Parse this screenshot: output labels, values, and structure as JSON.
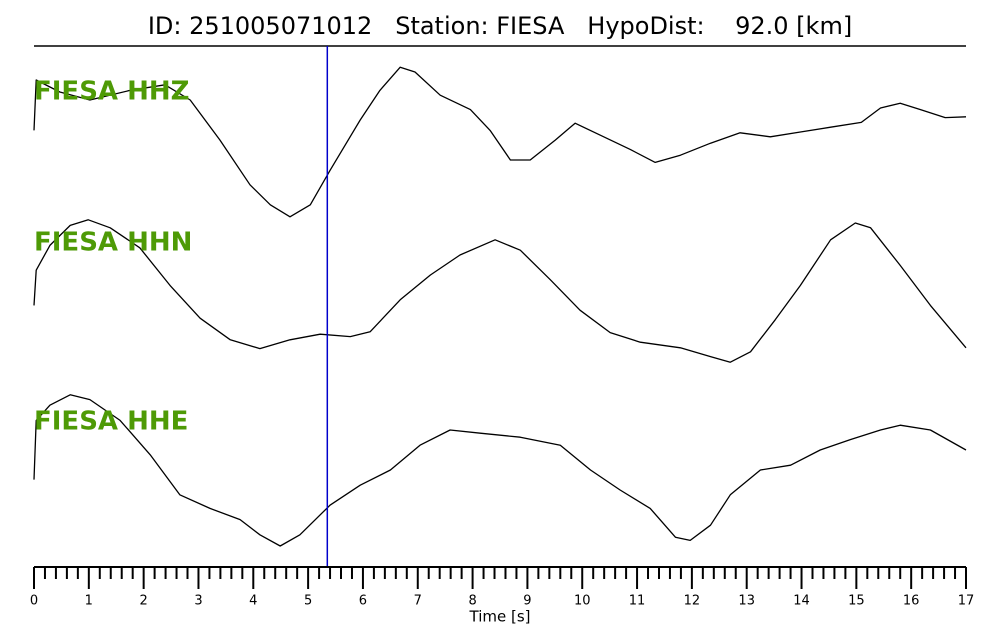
{
  "chart_data": {
    "type": "line",
    "title": "ID: 251005071012   Station: FIESA   HypoDist:    92.0 [km]",
    "xlabel": "Time [s]",
    "xlim": [
      0,
      17
    ],
    "ylim": [
      -1,
      1
    ],
    "xticks": [
      0,
      1,
      2,
      3,
      4,
      5,
      6,
      7,
      8,
      9,
      10,
      11,
      12,
      13,
      14,
      15,
      16,
      17
    ],
    "xminorticks": [
      0.2,
      0.4,
      0.6,
      0.8,
      1.2,
      1.4,
      1.6,
      1.8,
      2.2,
      2.4,
      2.6,
      2.8,
      3.2,
      3.4,
      3.6,
      3.8,
      4.2,
      4.4,
      4.6,
      4.8,
      5.2,
      5.4,
      5.6,
      5.8,
      6.2,
      6.4,
      6.6,
      6.8,
      7.2,
      7.4,
      7.6,
      7.8,
      8.2,
      8.4,
      8.6,
      8.8,
      9.2,
      9.4,
      9.6,
      9.8,
      10.2,
      10.4,
      10.6,
      10.8,
      11.2,
      11.4,
      11.6,
      11.8,
      12.2,
      12.4,
      12.6,
      12.8,
      13.2,
      13.4,
      13.6,
      13.8,
      14.2,
      14.4,
      14.6,
      14.8,
      15.2,
      15.4,
      15.6,
      15.8,
      16.2,
      16.4,
      16.6,
      16.8
    ],
    "pick_time": 5.35,
    "pick_color": "#0000cc",
    "series": [
      {
        "name": "FIESA HHZ",
        "color": "#000000",
        "x": [
          0,
          0.04,
          0.47,
          1.02,
          1.75,
          2.39,
          2.85,
          3.39,
          3.94,
          4.31,
          4.67,
          5.04,
          5.4,
          5.95,
          6.31,
          6.68,
          6.95,
          7.41,
          7.96,
          8.32,
          8.69,
          9.05,
          9.51,
          9.87,
          10.33,
          10.88,
          11.33,
          11.79,
          12.34,
          12.88,
          13.43,
          13.98,
          14.53,
          15.09,
          15.44,
          15.8,
          16.17,
          16.62,
          17
        ],
        "values": [
          0.12,
          0.75,
          0.6,
          0.5,
          0.62,
          0.69,
          0.5,
          0,
          -0.56,
          -0.81,
          -0.96,
          -0.81,
          -0.38,
          0.25,
          0.62,
          0.91,
          0.85,
          0.56,
          0.38,
          0.12,
          -0.25,
          -0.25,
          0,
          0.21,
          0.06,
          -0.12,
          -0.28,
          -0.19,
          -0.04,
          0.09,
          0.04,
          0.1,
          0.16,
          0.22,
          0.4,
          0.46,
          0.38,
          0.28,
          0.29
        ]
      },
      {
        "name": "FIESA HHN",
        "color": "#000000",
        "x": [
          0,
          0.04,
          0.29,
          0.66,
          0.99,
          1.39,
          1.93,
          2.48,
          3.03,
          3.58,
          4.12,
          4.67,
          5.22,
          5.77,
          6.13,
          6.68,
          7.23,
          7.77,
          8.41,
          8.87,
          9.42,
          9.96,
          10.51,
          11.06,
          11.79,
          12.34,
          12.7,
          13.07,
          13.52,
          13.98,
          14.53,
          14.98,
          15.26,
          15.8,
          16.35,
          17
        ],
        "values": [
          -0.18,
          0.26,
          0.57,
          0.82,
          0.89,
          0.79,
          0.54,
          0.07,
          -0.34,
          -0.61,
          -0.72,
          -0.61,
          -0.54,
          -0.57,
          -0.51,
          -0.11,
          0.2,
          0.45,
          0.64,
          0.51,
          0.14,
          -0.24,
          -0.52,
          -0.64,
          -0.71,
          -0.82,
          -0.89,
          -0.76,
          -0.36,
          0.07,
          0.64,
          0.85,
          0.79,
          0.32,
          -0.18,
          -0.71
        ]
      },
      {
        "name": "FIESA HHE",
        "color": "#000000",
        "x": [
          0,
          0.04,
          0.29,
          0.66,
          1.02,
          1.57,
          2.12,
          2.66,
          3.21,
          3.76,
          4.12,
          4.49,
          4.85,
          5.4,
          5.95,
          6.5,
          7.04,
          7.59,
          8.14,
          8.87,
          9.6,
          10.15,
          10.69,
          11.24,
          11.7,
          11.97,
          12.34,
          12.7,
          13.25,
          13.8,
          14.34,
          14.89,
          15.44,
          15.8,
          16.35,
          17
        ],
        "values": [
          -0.12,
          0.62,
          0.81,
          0.94,
          0.88,
          0.62,
          0.19,
          -0.31,
          -0.48,
          -0.62,
          -0.81,
          -0.95,
          -0.81,
          -0.44,
          -0.19,
          0,
          0.31,
          0.5,
          0.46,
          0.41,
          0.31,
          0,
          -0.25,
          -0.48,
          -0.84,
          -0.88,
          -0.69,
          -0.31,
          0,
          0.06,
          0.25,
          0.38,
          0.5,
          0.56,
          0.5,
          0.25
        ]
      }
    ],
    "label_color": "#4e9a06"
  }
}
